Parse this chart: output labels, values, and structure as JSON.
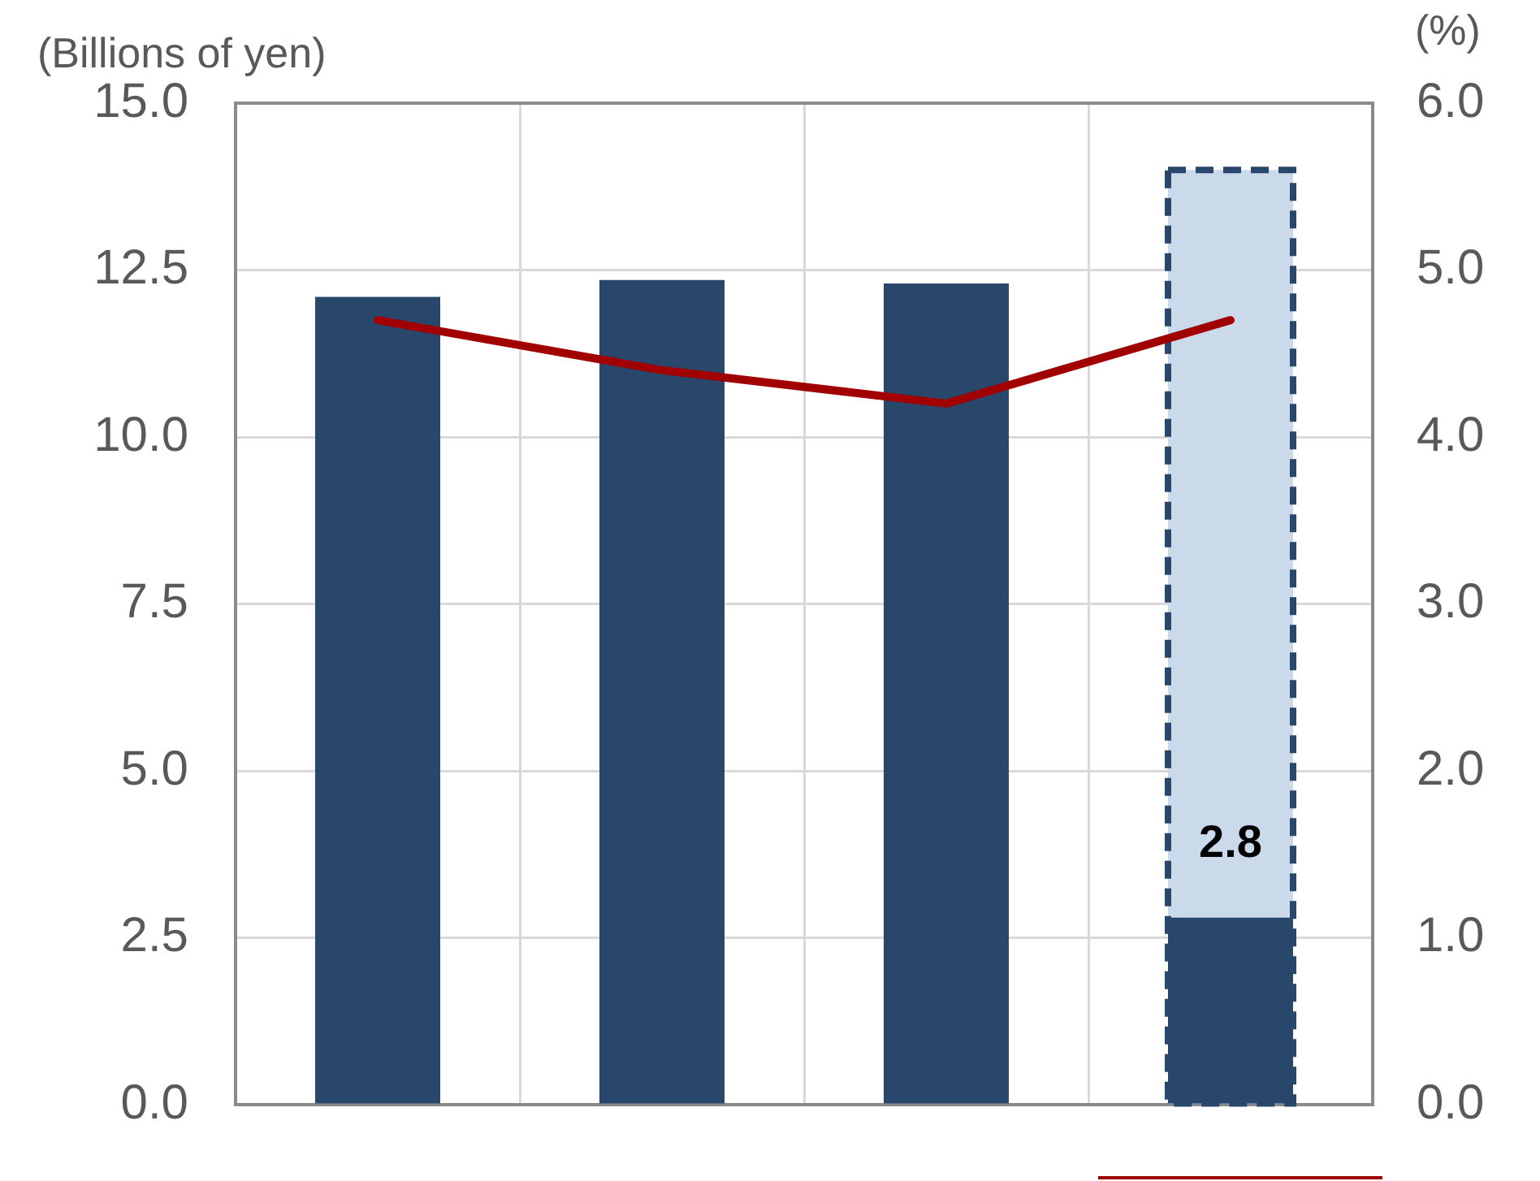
{
  "chart_data": {
    "type": "bar",
    "ylabel": "(Billions of yen)",
    "y2label": "(%)",
    "categories": [
      null,
      null,
      null,
      null
    ],
    "series": [
      {
        "color": "#28476a",
        "values": [
          12.1,
          12.35,
          12.3,
          2.8
        ],
        "value_labels": [
          null,
          null,
          null,
          "2.8"
        ]
      },
      {
        "color": "#cbdaea",
        "values": [
          null,
          null,
          null,
          14.0
        ],
        "line_style": "dashed"
      },
      {
        "type": "line",
        "axis": "y2",
        "color": "#a00000",
        "values": [
          4.7,
          4.4,
          4.2,
          4.7
        ]
      }
    ],
    "ylim": [
      0,
      15
    ],
    "yticks": [
      {
        "value": 0,
        "label": "0.0"
      },
      2.5,
      {
        "value": 5,
        "label": "5.0"
      },
      7.5,
      {
        "value": 10,
        "label": "10.0"
      },
      12.5,
      {
        "value": 15,
        "label": "15.0"
      }
    ],
    "y2lim": [
      0,
      6
    ],
    "y2ticks": [
      {
        "value": 0,
        "label": "0.0"
      },
      {
        "value": 1,
        "label": "1.0"
      },
      {
        "value": 2,
        "label": "2.0"
      },
      {
        "value": 3,
        "label": "3.0"
      },
      {
        "value": 4,
        "label": "4.0"
      },
      {
        "value": 5,
        "label": "5.0"
      },
      {
        "value": 6,
        "label": "6.0"
      }
    ],
    "grid": true
  }
}
